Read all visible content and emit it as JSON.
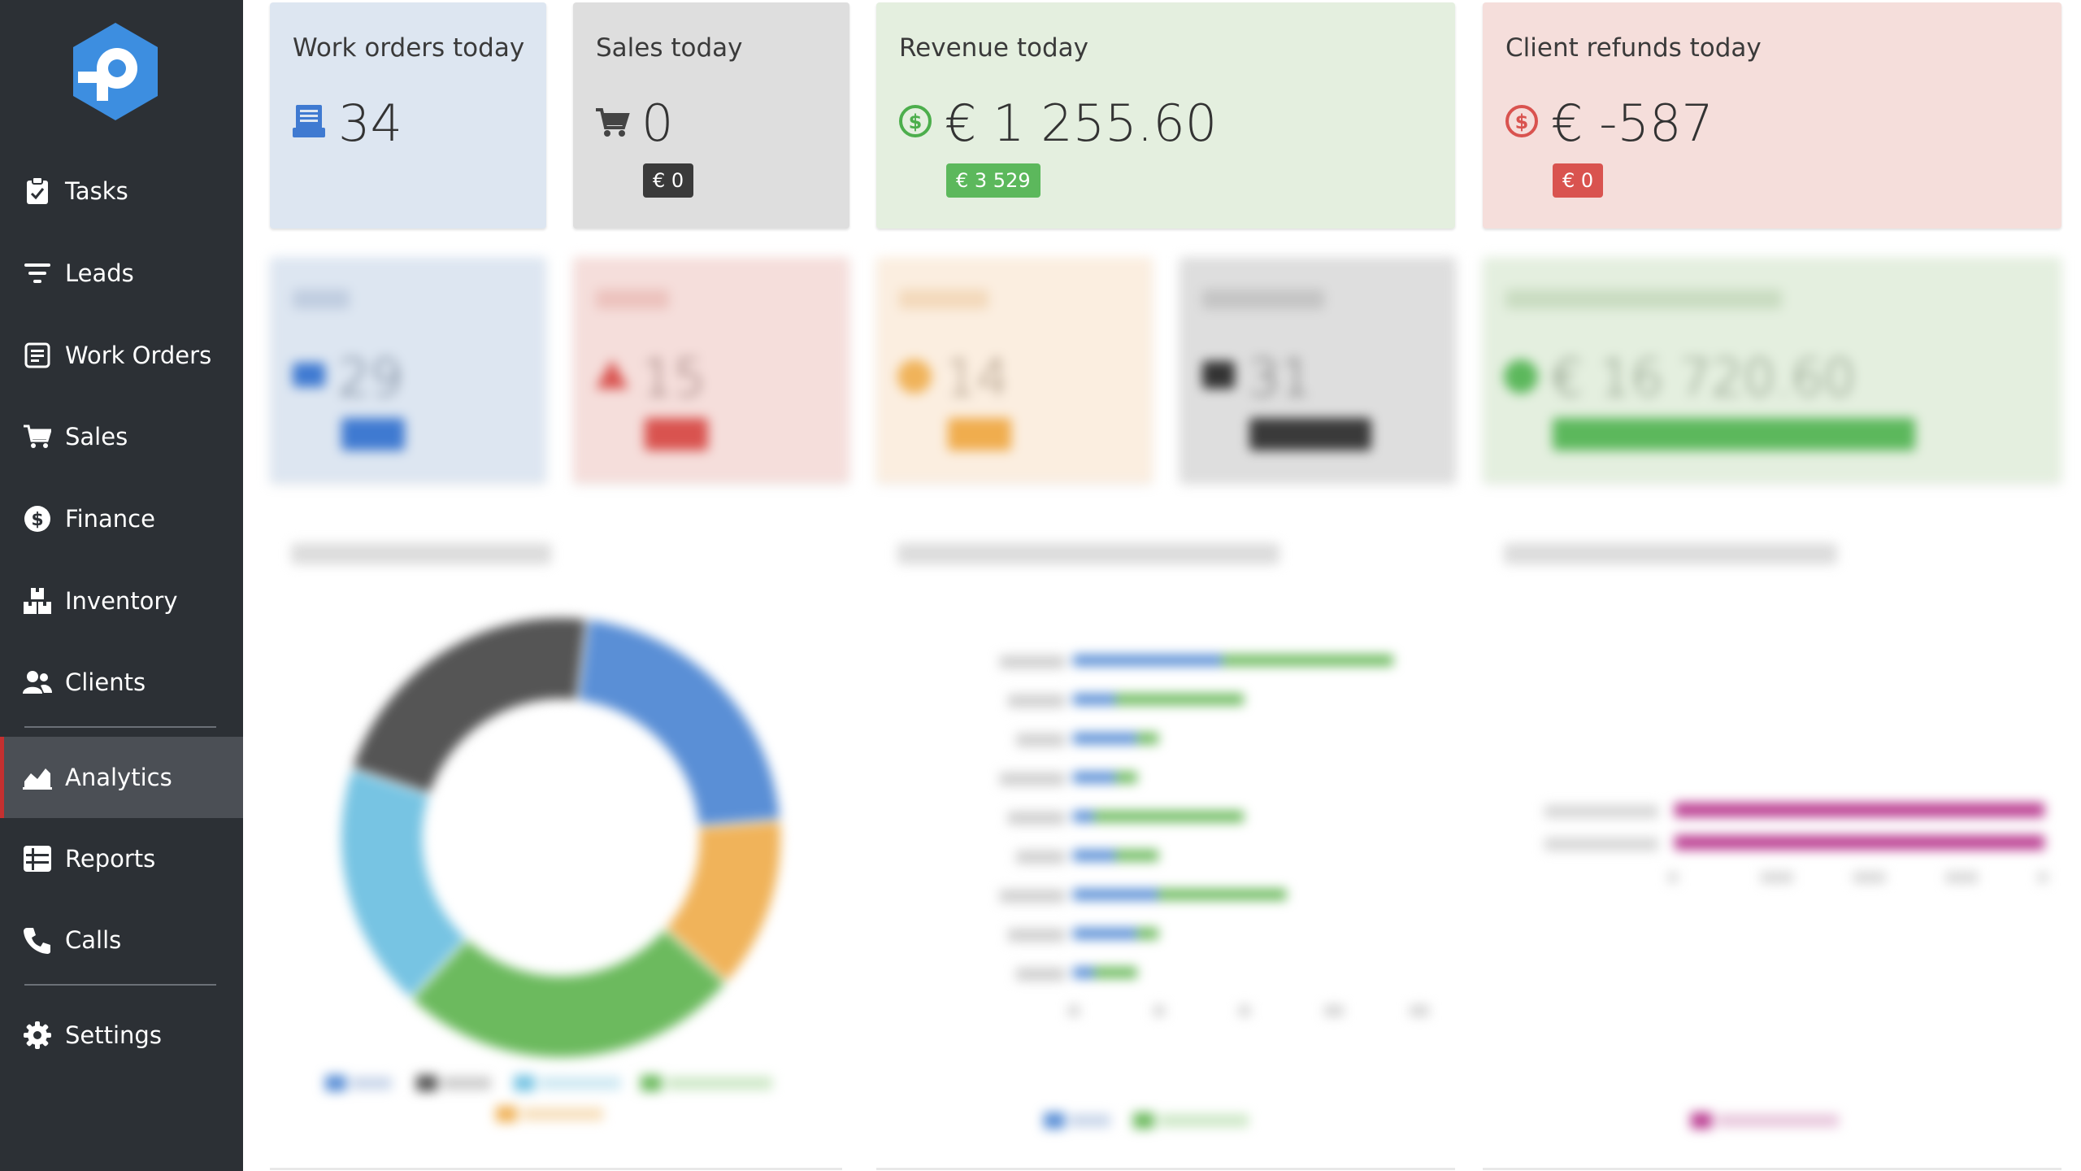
{
  "sidebar": {
    "items": [
      {
        "label": "Tasks",
        "icon": "clipboard-check-icon"
      },
      {
        "label": "Leads",
        "icon": "filter-icon"
      },
      {
        "label": "Work Orders",
        "icon": "list-box-icon"
      },
      {
        "label": "Sales",
        "icon": "cart-icon"
      },
      {
        "label": "Finance",
        "icon": "dollar-circle-icon"
      },
      {
        "label": "Inventory",
        "icon": "boxes-icon"
      },
      {
        "label": "Clients",
        "icon": "users-icon"
      },
      {
        "label": "Analytics",
        "icon": "area-chart-icon",
        "active": true
      },
      {
        "label": "Reports",
        "icon": "table-icon"
      },
      {
        "label": "Calls",
        "icon": "phone-icon"
      },
      {
        "label": "Settings",
        "icon": "gear-icon"
      }
    ]
  },
  "cards_top": {
    "work_orders": {
      "title": "Work orders today",
      "value": "34",
      "icon": "work-order-stack-icon"
    },
    "sales": {
      "title": "Sales today",
      "value": "0",
      "badge": "€ 0",
      "icon": "cart-icon"
    },
    "revenue": {
      "title": "Revenue today",
      "value": "€ 1 255.60",
      "badge": "€ 3 529",
      "icon": "dollar-circle-icon"
    },
    "refunds": {
      "title": "Client refunds today",
      "value": "€ -587",
      "badge": "€ 0",
      "icon": "dollar-circle-icon"
    }
  },
  "cards_second_blurred": {
    "new": {
      "value": "29"
    },
    "urgent": {
      "value": "15"
    },
    "overdue": {
      "value": "14"
    },
    "receivables": {
      "value": "31"
    },
    "cash": {
      "value": "€ 16 720.60"
    }
  },
  "colors": {
    "sidebar_bg": "#2c3035",
    "active_bg": "#4b4f55",
    "active_accent": "#c53030",
    "card_blue": "#dde6f1",
    "card_gray": "#dedede",
    "card_green": "#e4efdf",
    "card_red": "#f5dedb",
    "card_orange": "#fbeee0",
    "blue": "#5a8fd6",
    "green": "#6cba5e",
    "dark": "#555555",
    "light_blue": "#77c4e3",
    "orange": "#f0b35a",
    "magenta": "#bb3f92",
    "badge_dark": "#3a3a3a",
    "badge_green": "#5cb85c",
    "badge_red": "#d9534f"
  },
  "chart_data": [
    {
      "type": "pie",
      "labels": [
        "",
        "",
        "",
        "",
        ""
      ],
      "values": [
        24,
        14,
        28,
        20,
        24
      ],
      "colors": [
        "#5a8fd6",
        "#f0b35a",
        "#6cba5e",
        "#77c4e3",
        "#555555"
      ],
      "hole": 0.62
    },
    {
      "type": "bar",
      "orientation": "horizontal",
      "stacked": true,
      "categories": [
        "",
        "",
        "",
        "",
        "",
        "",
        "",
        "",
        ""
      ],
      "series": [
        {
          "color": "#5a8fd6",
          "values": [
            7,
            2,
            3,
            2,
            1,
            2,
            4,
            3,
            1
          ]
        },
        {
          "color": "#6cba5e",
          "values": [
            8,
            6,
            1,
            1,
            7,
            2,
            6,
            1,
            2
          ]
        }
      ],
      "xlim": [
        0,
        16
      ]
    },
    {
      "type": "bar",
      "orientation": "horizontal",
      "categories": [
        "",
        ""
      ],
      "series": [
        {
          "color": "#bb3f92",
          "values": [
            1,
            1
          ]
        }
      ],
      "xlim": [
        0,
        1
      ]
    }
  ]
}
